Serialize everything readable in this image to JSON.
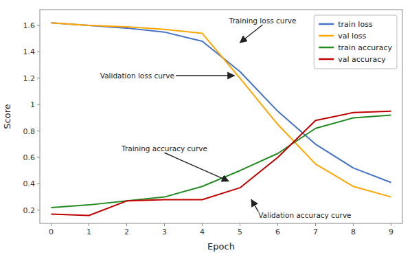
{
  "chart_data": {
    "type": "line",
    "x": [
      0,
      1,
      2,
      3,
      4,
      5,
      6,
      7,
      8,
      9
    ],
    "series": [
      {
        "name": "train loss",
        "color": "#4472C4",
        "values": [
          1.62,
          1.6,
          1.58,
          1.55,
          1.48,
          1.25,
          0.95,
          0.7,
          0.52,
          0.41
        ]
      },
      {
        "name": "val loss",
        "color": "#FFA500",
        "values": [
          1.62,
          1.6,
          1.59,
          1.57,
          1.54,
          1.2,
          0.85,
          0.55,
          0.38,
          0.3
        ]
      },
      {
        "name": "train accuracy",
        "color": "#228B22",
        "values": [
          0.22,
          0.24,
          0.27,
          0.3,
          0.38,
          0.5,
          0.63,
          0.82,
          0.9,
          0.92
        ]
      },
      {
        "name": "val accuracy",
        "color": "#C00000",
        "values": [
          0.17,
          0.16,
          0.27,
          0.28,
          0.28,
          0.37,
          0.6,
          0.88,
          0.94,
          0.95
        ]
      }
    ],
    "xlabel": "Epoch",
    "ylabel": "Score",
    "xlim": [
      -0.3,
      9.3
    ],
    "ylim": [
      0.1,
      1.72
    ],
    "xticks": [
      0,
      1,
      2,
      3,
      4,
      5,
      6,
      7,
      8,
      9
    ],
    "yticks": [
      0.2,
      0.4,
      0.6,
      0.8,
      1.0,
      1.2,
      1.4,
      1.6
    ],
    "grid": false,
    "legend": "upper right",
    "annotations": [
      {
        "text": "Training loss curve",
        "xy": [
          5.0,
          1.47
        ],
        "xytext": [
          5.6,
          1.6
        ]
      },
      {
        "text": "Validation loss curve",
        "xy": [
          4.85,
          1.22
        ],
        "xytext": [
          3.3,
          1.22
        ]
      },
      {
        "text": "Training accuracy curve",
        "xy": [
          4.7,
          0.42
        ],
        "xytext": [
          3.0,
          0.63
        ]
      },
      {
        "text": "Validation accuracy curve",
        "xy": [
          5.3,
          0.28
        ],
        "xytext": [
          5.45,
          0.2
        ]
      }
    ]
  }
}
